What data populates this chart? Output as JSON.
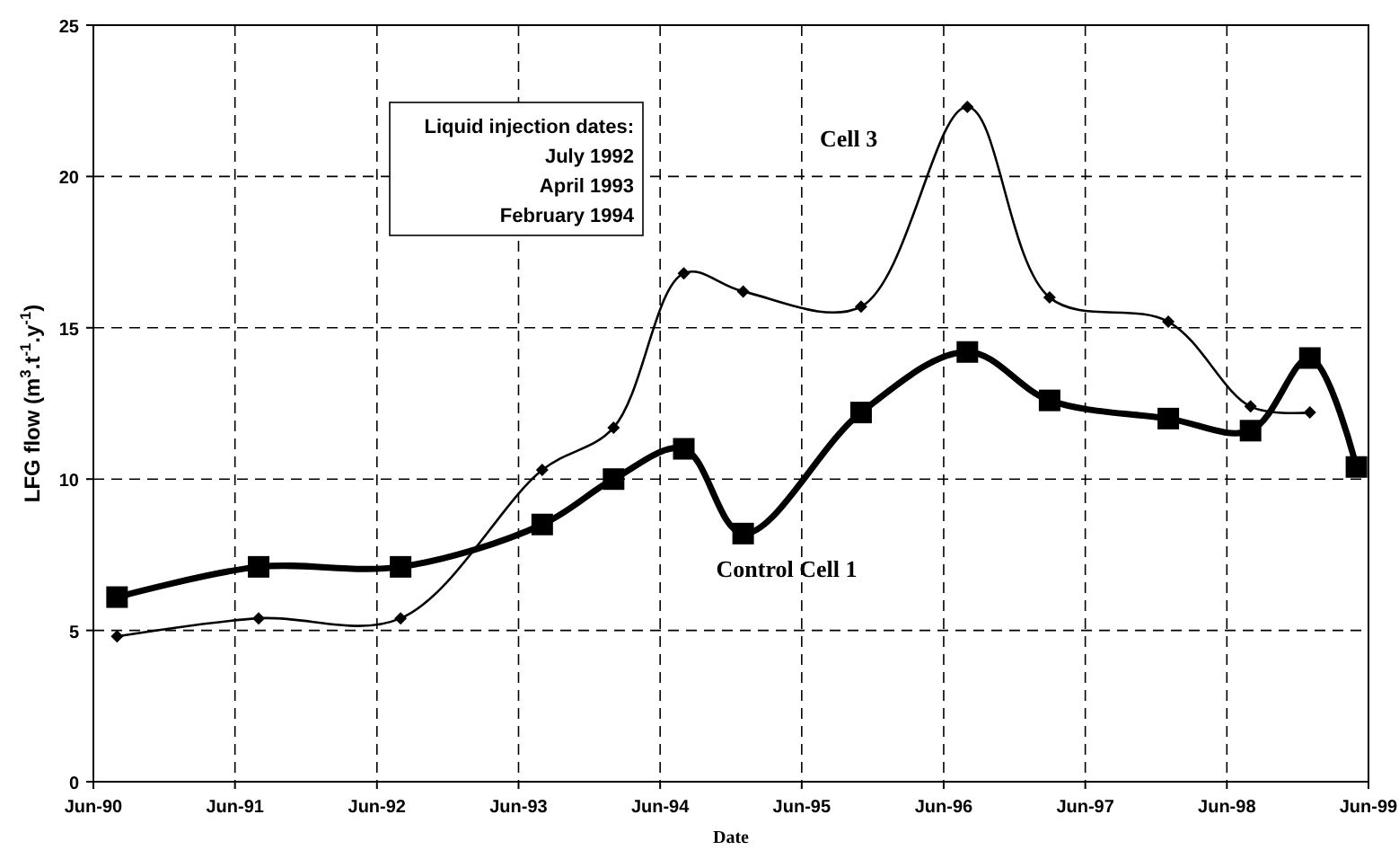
{
  "chart_data": {
    "type": "line",
    "xlabel": "Date",
    "ylabel": "LFG flow (m$^{3}$.t$^{-1}$.y$^{-1}$)",
    "xlim": [
      "1990-06",
      "1999-06"
    ],
    "xticks": [
      {
        "value": "1990-06",
        "label": "Jun-90"
      },
      {
        "value": "1991-06",
        "label": "Jun-91"
      },
      {
        "value": "1992-06",
        "label": "Jun-92"
      },
      {
        "value": "1993-06",
        "label": "Jun-93"
      },
      {
        "value": "1994-06",
        "label": "Jun-94"
      },
      {
        "value": "1995-06",
        "label": "Jun-95"
      },
      {
        "value": "1996-06",
        "label": "Jun-96"
      },
      {
        "value": "1997-06",
        "label": "Jun-97"
      },
      {
        "value": "1998-06",
        "label": "Jun-98"
      },
      {
        "value": "1999-06",
        "label": "Jun-99"
      }
    ],
    "ylim": [
      0,
      25
    ],
    "yticks": [
      0,
      5,
      10,
      15,
      20,
      25
    ],
    "grid": true,
    "annotations": [
      "Liquid injection dates:",
      "July 1992",
      "April 1993",
      "February 1994"
    ],
    "series": [
      {
        "name": "Cell 3",
        "color": "#000000",
        "marker": "diamond",
        "x": [
          "1990-08",
          "1991-08",
          "1992-08",
          "1993-08",
          "1994-02",
          "1994-08",
          "1995-01",
          "1995-11",
          "1996-08",
          "1997-03",
          "1998-01",
          "1998-08",
          "1999-01"
        ],
        "values": [
          4.8,
          5.4,
          5.4,
          10.3,
          11.7,
          16.8,
          16.2,
          15.7,
          22.3,
          16.0,
          15.2,
          12.4,
          12.2
        ]
      },
      {
        "name": "Control Cell 1",
        "color": "#000000",
        "marker": "square",
        "x": [
          "1990-08",
          "1991-08",
          "1992-08",
          "1993-08",
          "1994-02",
          "1994-08",
          "1995-01",
          "1995-11",
          "1996-08",
          "1997-03",
          "1998-01",
          "1998-08",
          "1999-01",
          "1999-05"
        ],
        "values": [
          6.1,
          7.1,
          7.1,
          8.5,
          10.0,
          11.0,
          8.2,
          12.2,
          14.2,
          12.6,
          12.0,
          11.6,
          14.0,
          10.4
        ]
      }
    ]
  }
}
